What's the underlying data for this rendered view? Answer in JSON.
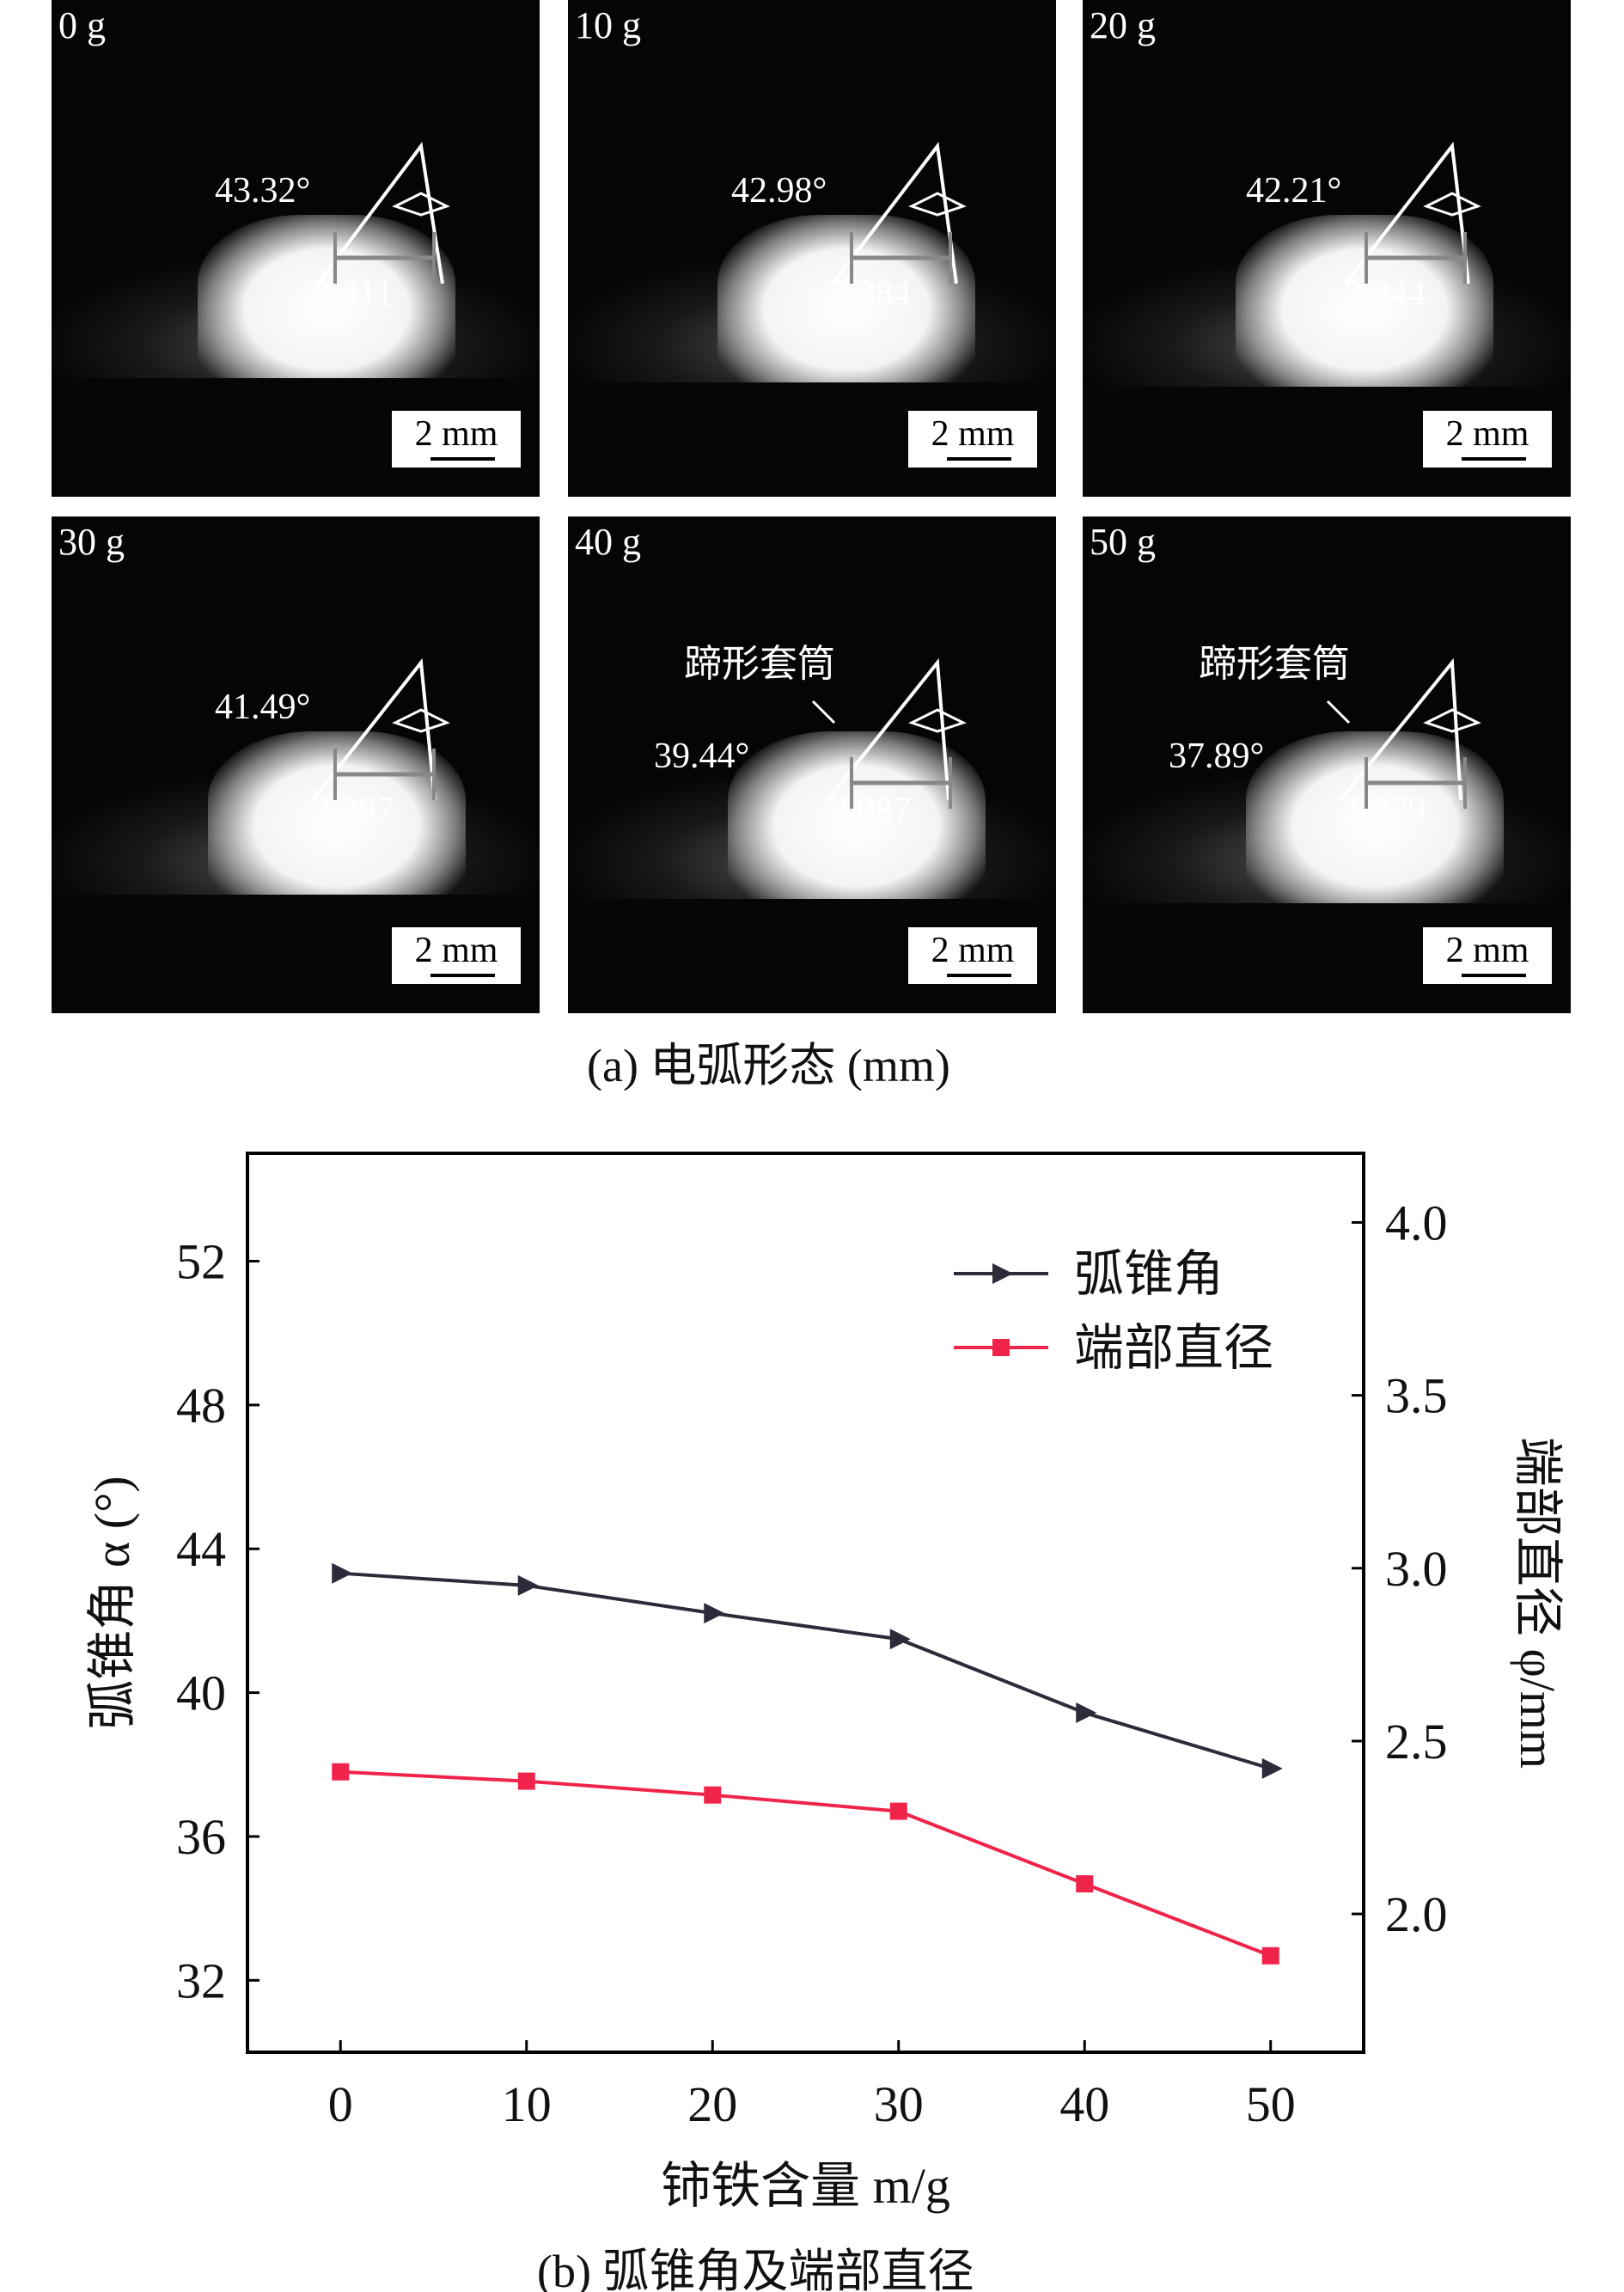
{
  "panels": [
    {
      "label": "0 g",
      "angle": "43.32°",
      "diameter": "2.411",
      "scale": "2 mm"
    },
    {
      "label": "10 g",
      "angle": "42.98°",
      "diameter": "2.384",
      "scale": "2 mm"
    },
    {
      "label": "20 g",
      "angle": "42.21°",
      "diameter": "2.344",
      "scale": "2 mm"
    },
    {
      "label": "30 g",
      "angle": "41.49°",
      "diameter": "2.297",
      "scale": "2 mm"
    },
    {
      "label": "40 g",
      "angle": "39.44°",
      "diameter": "2.087",
      "scale": "2 mm",
      "annotation": "蹄形套筒"
    },
    {
      "label": "50 g",
      "angle": "37.89°",
      "diameter": "1.879",
      "scale": "2 mm",
      "annotation": "蹄形套筒"
    }
  ],
  "caption_a": "(a) 电弧形态 (mm)",
  "caption_b": "(b) 弧锥角及端部直径",
  "chart_data": {
    "type": "line",
    "x": [
      0,
      10,
      20,
      30,
      40,
      50
    ],
    "xlabel": "铈铁含量 m/g",
    "ylabel": "弧锥角 α (°)",
    "y2label": "端部直径 φ/mm",
    "xlim": [
      -5,
      55
    ],
    "ylim": [
      30,
      55
    ],
    "y2lim": [
      1.6,
      4.2
    ],
    "xticks": [
      "0",
      "10",
      "20",
      "30",
      "40",
      "50"
    ],
    "yticks": [
      "32",
      "36",
      "40",
      "44",
      "48",
      "52"
    ],
    "y2ticks": [
      "2.0",
      "2.5",
      "3.0",
      "3.5",
      "4.0"
    ],
    "series": [
      {
        "name": "弧锥角",
        "axis": "left",
        "color": "#2b2b3a",
        "marker": "triangle-right",
        "values": [
          43.32,
          42.98,
          42.21,
          41.49,
          39.44,
          37.89
        ]
      },
      {
        "name": "端部直径",
        "axis": "right",
        "color": "#f0244a",
        "marker": "square",
        "values": [
          2.411,
          2.384,
          2.344,
          2.297,
          2.087,
          1.879
        ]
      }
    ],
    "legend": "top-right",
    "grid": false
  }
}
